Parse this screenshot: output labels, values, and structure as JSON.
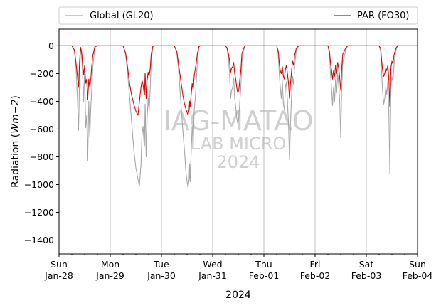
{
  "chart_data": {
    "type": "line",
    "xlabel": "2024",
    "ylabel_main": "Radiation (",
    "ylabel_unit": "Wm−2",
    "ylabel_close": ")",
    "ylim": [
      -1500,
      120
    ],
    "yticks": [
      0,
      -200,
      -400,
      -600,
      -800,
      -1000,
      -1200,
      -1400
    ],
    "ytick_labels": [
      "0",
      "−200",
      "−400",
      "−600",
      "−800",
      "−1000",
      "−1200",
      "−1400"
    ],
    "xlim_days": [
      0,
      7
    ],
    "x_ticks": [
      {
        "day": "Sun",
        "date": "Jan-28"
      },
      {
        "day": "Mon",
        "date": "Jan-29"
      },
      {
        "day": "Tue",
        "date": "Jan-30"
      },
      {
        "day": "Wed",
        "date": "Jan-31"
      },
      {
        "day": "Thu",
        "date": "Feb-01"
      },
      {
        "day": "Fri",
        "date": "Feb-02"
      },
      {
        "day": "Sat",
        "date": "Feb-03"
      },
      {
        "day": "Sun",
        "date": "Feb-04"
      }
    ],
    "grid": "vertical at day boundaries",
    "zero_line": true,
    "legend_placement": "above plot",
    "watermark": [
      "IAG-MATAO",
      "LAB MICRO",
      "2024"
    ],
    "series": [
      {
        "name": "Global (GL20)",
        "color": "#a6a6a6",
        "points": [
          [
            0.0,
            0
          ],
          [
            0.25,
            0
          ],
          [
            0.3,
            -30
          ],
          [
            0.33,
            -150
          ],
          [
            0.36,
            -380
          ],
          [
            0.38,
            -610
          ],
          [
            0.4,
            -250
          ],
          [
            0.42,
            -20
          ],
          [
            0.44,
            -70
          ],
          [
            0.46,
            -200
          ],
          [
            0.48,
            -400
          ],
          [
            0.5,
            -160
          ],
          [
            0.52,
            -590
          ],
          [
            0.54,
            -500
          ],
          [
            0.56,
            -830
          ],
          [
            0.58,
            -400
          ],
          [
            0.6,
            -650
          ],
          [
            0.62,
            -450
          ],
          [
            0.64,
            -300
          ],
          [
            0.66,
            -150
          ],
          [
            0.7,
            -10
          ],
          [
            0.75,
            0
          ],
          [
            1.0,
            0
          ],
          [
            1.25,
            0
          ],
          [
            1.3,
            -60
          ],
          [
            1.34,
            -200
          ],
          [
            1.38,
            -380
          ],
          [
            1.42,
            -560
          ],
          [
            1.46,
            -750
          ],
          [
            1.5,
            -880
          ],
          [
            1.54,
            -960
          ],
          [
            1.57,
            -1010
          ],
          [
            1.6,
            -850
          ],
          [
            1.62,
            -640
          ],
          [
            1.64,
            -580
          ],
          [
            1.66,
            -700
          ],
          [
            1.67,
            -720
          ],
          [
            1.68,
            -420
          ],
          [
            1.69,
            -560
          ],
          [
            1.7,
            -800
          ],
          [
            1.72,
            -520
          ],
          [
            1.74,
            -380
          ],
          [
            1.76,
            -470
          ],
          [
            1.78,
            -300
          ],
          [
            1.8,
            -120
          ],
          [
            1.83,
            -10
          ],
          [
            1.85,
            0
          ],
          [
            2.0,
            0
          ],
          [
            2.25,
            0
          ],
          [
            2.3,
            -50
          ],
          [
            2.34,
            -200
          ],
          [
            2.38,
            -420
          ],
          [
            2.42,
            -620
          ],
          [
            2.45,
            -760
          ],
          [
            2.48,
            -920
          ],
          [
            2.5,
            -980
          ],
          [
            2.52,
            -1020
          ],
          [
            2.54,
            -960
          ],
          [
            2.55,
            -850
          ],
          [
            2.56,
            -980
          ],
          [
            2.58,
            -760
          ],
          [
            2.6,
            -580
          ],
          [
            2.62,
            -700
          ],
          [
            2.64,
            -460
          ],
          [
            2.66,
            -380
          ],
          [
            2.68,
            -250
          ],
          [
            2.7,
            -120
          ],
          [
            2.73,
            -10
          ],
          [
            2.76,
            0
          ],
          [
            3.0,
            0
          ],
          [
            3.25,
            0
          ],
          [
            3.28,
            -20
          ],
          [
            3.31,
            -100
          ],
          [
            3.33,
            -200
          ],
          [
            3.35,
            -380
          ],
          [
            3.37,
            -320
          ],
          [
            3.39,
            -300
          ],
          [
            3.41,
            -230
          ],
          [
            3.43,
            -380
          ],
          [
            3.45,
            -440
          ],
          [
            3.47,
            -520
          ],
          [
            3.49,
            -560
          ],
          [
            3.51,
            -520
          ],
          [
            3.53,
            -400
          ],
          [
            3.55,
            -300
          ],
          [
            3.57,
            -120
          ],
          [
            3.6,
            -40
          ],
          [
            3.63,
            0
          ],
          [
            4.0,
            0
          ],
          [
            4.25,
            0
          ],
          [
            4.28,
            -60
          ],
          [
            4.3,
            -200
          ],
          [
            4.32,
            -300
          ],
          [
            4.34,
            -380
          ],
          [
            4.36,
            -250
          ],
          [
            4.38,
            -420
          ],
          [
            4.4,
            -460
          ],
          [
            4.42,
            -300
          ],
          [
            4.44,
            -260
          ],
          [
            4.46,
            -400
          ],
          [
            4.48,
            -560
          ],
          [
            4.5,
            -820
          ],
          [
            4.52,
            -560
          ],
          [
            4.54,
            -360
          ],
          [
            4.56,
            -220
          ],
          [
            4.58,
            -280
          ],
          [
            4.6,
            -140
          ],
          [
            4.63,
            -40
          ],
          [
            4.66,
            -10
          ],
          [
            4.7,
            0
          ],
          [
            5.0,
            0
          ],
          [
            5.25,
            0
          ],
          [
            5.28,
            -60
          ],
          [
            5.3,
            -200
          ],
          [
            5.32,
            -300
          ],
          [
            5.34,
            -430
          ],
          [
            5.36,
            -300
          ],
          [
            5.38,
            -400
          ],
          [
            5.4,
            -240
          ],
          [
            5.42,
            -340
          ],
          [
            5.44,
            -200
          ],
          [
            5.46,
            -280
          ],
          [
            5.48,
            -400
          ],
          [
            5.5,
            -660
          ],
          [
            5.52,
            -300
          ],
          [
            5.54,
            -120
          ],
          [
            5.56,
            -90
          ],
          [
            5.58,
            -60
          ],
          [
            5.61,
            -20
          ],
          [
            5.64,
            0
          ],
          [
            6.0,
            0
          ],
          [
            6.25,
            0
          ],
          [
            6.28,
            -40
          ],
          [
            6.3,
            -200
          ],
          [
            6.32,
            -330
          ],
          [
            6.34,
            -420
          ],
          [
            6.36,
            -380
          ],
          [
            6.38,
            -300
          ],
          [
            6.4,
            -350
          ],
          [
            6.42,
            -260
          ],
          [
            6.44,
            -480
          ],
          [
            6.46,
            -920
          ],
          [
            6.48,
            -300
          ],
          [
            6.5,
            -220
          ],
          [
            6.52,
            -260
          ],
          [
            6.54,
            -140
          ],
          [
            6.56,
            -80
          ],
          [
            6.58,
            -30
          ],
          [
            6.61,
            0
          ],
          [
            7.0,
            0
          ]
        ]
      },
      {
        "name": "PAR (FO30)",
        "color": "#e00000",
        "points": [
          [
            0.0,
            0
          ],
          [
            0.25,
            0
          ],
          [
            0.3,
            -30
          ],
          [
            0.33,
            -120
          ],
          [
            0.36,
            -220
          ],
          [
            0.38,
            -300
          ],
          [
            0.4,
            -120
          ],
          [
            0.42,
            -10
          ],
          [
            0.44,
            -40
          ],
          [
            0.46,
            -130
          ],
          [
            0.48,
            -210
          ],
          [
            0.5,
            -140
          ],
          [
            0.52,
            -270
          ],
          [
            0.54,
            -240
          ],
          [
            0.56,
            -390
          ],
          [
            0.58,
            -240
          ],
          [
            0.6,
            -300
          ],
          [
            0.62,
            -240
          ],
          [
            0.64,
            -140
          ],
          [
            0.66,
            -70
          ],
          [
            0.7,
            -5
          ],
          [
            0.75,
            0
          ],
          [
            1.0,
            0
          ],
          [
            1.25,
            0
          ],
          [
            1.3,
            -50
          ],
          [
            1.34,
            -160
          ],
          [
            1.38,
            -280
          ],
          [
            1.42,
            -360
          ],
          [
            1.46,
            -420
          ],
          [
            1.5,
            -470
          ],
          [
            1.54,
            -500
          ],
          [
            1.57,
            -400
          ],
          [
            1.6,
            -300
          ],
          [
            1.62,
            -250
          ],
          [
            1.64,
            -280
          ],
          [
            1.66,
            -340
          ],
          [
            1.67,
            -350
          ],
          [
            1.68,
            -200
          ],
          [
            1.69,
            -260
          ],
          [
            1.7,
            -380
          ],
          [
            1.72,
            -250
          ],
          [
            1.74,
            -190
          ],
          [
            1.76,
            -220
          ],
          [
            1.78,
            -160
          ],
          [
            1.8,
            -60
          ],
          [
            1.83,
            -5
          ],
          [
            1.85,
            0
          ],
          [
            2.0,
            0
          ],
          [
            2.25,
            0
          ],
          [
            2.3,
            -40
          ],
          [
            2.34,
            -150
          ],
          [
            2.38,
            -260
          ],
          [
            2.42,
            -360
          ],
          [
            2.45,
            -420
          ],
          [
            2.48,
            -460
          ],
          [
            2.5,
            -480
          ],
          [
            2.52,
            -500
          ],
          [
            2.54,
            -460
          ],
          [
            2.55,
            -400
          ],
          [
            2.56,
            -440
          ],
          [
            2.58,
            -350
          ],
          [
            2.6,
            -270
          ],
          [
            2.62,
            -320
          ],
          [
            2.64,
            -210
          ],
          [
            2.66,
            -170
          ],
          [
            2.68,
            -120
          ],
          [
            2.7,
            -60
          ],
          [
            2.73,
            -5
          ],
          [
            2.76,
            0
          ],
          [
            3.0,
            0
          ],
          [
            3.25,
            0
          ],
          [
            3.28,
            -15
          ],
          [
            3.31,
            -60
          ],
          [
            3.33,
            -110
          ],
          [
            3.35,
            -190
          ],
          [
            3.37,
            -160
          ],
          [
            3.39,
            -150
          ],
          [
            3.41,
            -120
          ],
          [
            3.43,
            -200
          ],
          [
            3.45,
            -240
          ],
          [
            3.47,
            -300
          ],
          [
            3.49,
            -340
          ],
          [
            3.51,
            -320
          ],
          [
            3.53,
            -240
          ],
          [
            3.55,
            -180
          ],
          [
            3.57,
            -60
          ],
          [
            3.6,
            -20
          ],
          [
            3.63,
            0
          ],
          [
            4.0,
            0
          ],
          [
            4.25,
            0
          ],
          [
            4.28,
            -40
          ],
          [
            4.3,
            -120
          ],
          [
            4.32,
            -180
          ],
          [
            4.34,
            -200
          ],
          [
            4.36,
            -150
          ],
          [
            4.38,
            -220
          ],
          [
            4.4,
            -240
          ],
          [
            4.42,
            -170
          ],
          [
            4.44,
            -140
          ],
          [
            4.46,
            -200
          ],
          [
            4.48,
            -270
          ],
          [
            4.5,
            -380
          ],
          [
            4.52,
            -270
          ],
          [
            4.54,
            -180
          ],
          [
            4.56,
            -110
          ],
          [
            4.58,
            -140
          ],
          [
            4.6,
            -70
          ],
          [
            4.63,
            -20
          ],
          [
            4.66,
            -5
          ],
          [
            4.7,
            0
          ],
          [
            5.0,
            0
          ],
          [
            5.25,
            0
          ],
          [
            5.28,
            -40
          ],
          [
            5.3,
            -120
          ],
          [
            5.32,
            -170
          ],
          [
            5.34,
            -240
          ],
          [
            5.36,
            -180
          ],
          [
            5.38,
            -220
          ],
          [
            5.4,
            -140
          ],
          [
            5.42,
            -200
          ],
          [
            5.44,
            -120
          ],
          [
            5.46,
            -160
          ],
          [
            5.48,
            -230
          ],
          [
            5.5,
            -320
          ],
          [
            5.52,
            -160
          ],
          [
            5.54,
            -60
          ],
          [
            5.56,
            -45
          ],
          [
            5.58,
            -30
          ],
          [
            5.61,
            -10
          ],
          [
            5.64,
            0
          ],
          [
            6.0,
            0
          ],
          [
            6.25,
            0
          ],
          [
            6.28,
            -20
          ],
          [
            6.3,
            -110
          ],
          [
            6.32,
            -180
          ],
          [
            6.34,
            -220
          ],
          [
            6.36,
            -200
          ],
          [
            6.38,
            -160
          ],
          [
            6.4,
            -180
          ],
          [
            6.42,
            -140
          ],
          [
            6.44,
            -240
          ],
          [
            6.46,
            -440
          ],
          [
            6.48,
            -160
          ],
          [
            6.5,
            -110
          ],
          [
            6.52,
            -130
          ],
          [
            6.54,
            -70
          ],
          [
            6.56,
            -40
          ],
          [
            6.58,
            -15
          ],
          [
            6.61,
            0
          ],
          [
            7.0,
            0
          ]
        ]
      }
    ]
  }
}
